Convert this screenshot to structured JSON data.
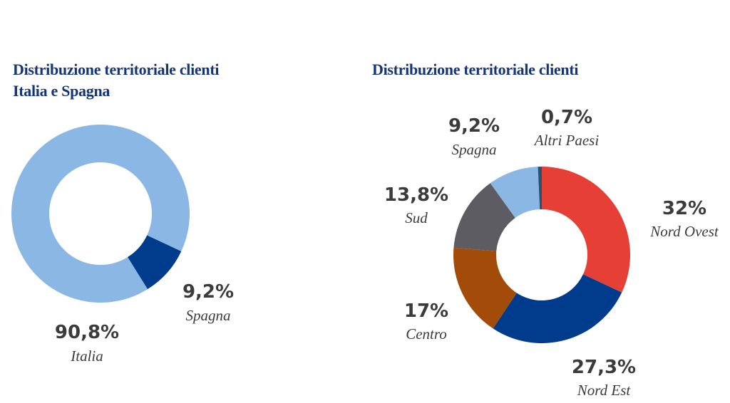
{
  "chart_data": [
    {
      "type": "pie",
      "title": "Distribuzione territoriale clienti",
      "subtitle": "Italia e Spagna",
      "slices": [
        {
          "label": "Italia",
          "value": 90.8,
          "value_label": "90,8%",
          "color": "#8ab7e3"
        },
        {
          "label": "Spagna",
          "value": 9.2,
          "value_label": "9,2%",
          "color": "#003b8c"
        }
      ]
    },
    {
      "type": "pie",
      "title": "Distribuzione territoriale clienti",
      "slices": [
        {
          "label": "Nord Ovest",
          "value": 32,
          "value_label": "32%",
          "color": "#e53f36"
        },
        {
          "label": "Nord Est",
          "value": 27.3,
          "value_label": "27,3%",
          "color": "#003b8c"
        },
        {
          "label": "Centro",
          "value": 17,
          "value_label": "17%",
          "color": "#a34c09"
        },
        {
          "label": "Sud",
          "value": 13.8,
          "value_label": "13,8%",
          "color": "#5c5c62"
        },
        {
          "label": "Spagna",
          "value": 9.2,
          "value_label": "9,2%",
          "color": "#8ab7e3"
        },
        {
          "label": "Altri Paesi",
          "value": 0.7,
          "value_label": "0,7%",
          "color": "#2f4f6f"
        }
      ]
    }
  ]
}
